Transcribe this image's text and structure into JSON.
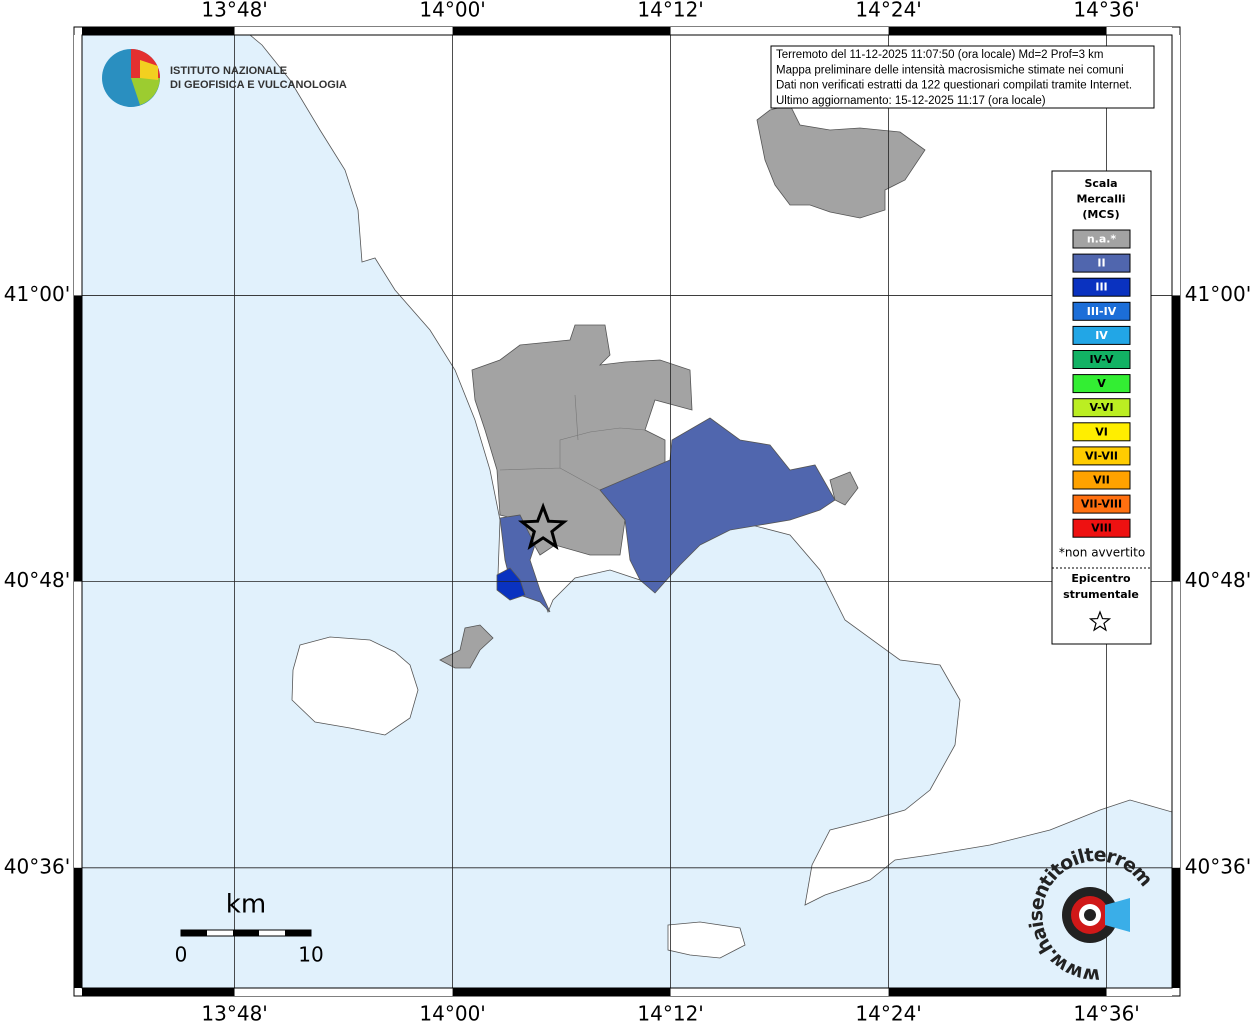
{
  "map": {
    "lon_lim": [
      13.66,
      14.66
    ],
    "lat_lim": [
      40.516,
      41.182
    ],
    "lon_ticks": [
      {
        "value": 13.8,
        "label": "13°48'"
      },
      {
        "value": 14.0,
        "label": "14°00'"
      },
      {
        "value": 14.2,
        "label": "14°12'"
      },
      {
        "value": 14.4,
        "label": "14°24'"
      },
      {
        "value": 14.6,
        "label": "14°36'"
      }
    ],
    "lat_ticks": [
      {
        "value": 41.0,
        "label": "41°00'"
      },
      {
        "value": 40.8,
        "label": "40°48'"
      },
      {
        "value": 40.6,
        "label": "40°36'"
      }
    ],
    "epicenter": {
      "lon": 14.083,
      "lat": 40.837
    },
    "sea_color": "#e1f1fc"
  },
  "info_box": [
    "Terremoto del 11-12-2025 11:07:50 (ora locale) Md=2 Prof=3 km",
    "Mappa preliminare delle intensità macrosismiche stimate nei comuni",
    "Dati non verificati estratti da 122 questionari compilati tramite Internet.",
    "Ultimo aggiornamento: 15-12-2025 11:17 (ora locale)"
  ],
  "legend": {
    "title": [
      "Scala",
      "Mercalli",
      "(MCS)"
    ],
    "items": [
      {
        "label": "n.a.*",
        "color": "#a3a3a3"
      },
      {
        "label": "II",
        "color": "#5066ae"
      },
      {
        "label": "III",
        "color": "#0a32c0"
      },
      {
        "label": "III-IV",
        "color": "#1c6ed8"
      },
      {
        "label": "IV",
        "color": "#22a6e6"
      },
      {
        "label": "IV-V",
        "color": "#12b264"
      },
      {
        "label": "V",
        "color": "#33ee33"
      },
      {
        "label": "V-VI",
        "color": "#bbee22"
      },
      {
        "label": "VI",
        "color": "#ffee00"
      },
      {
        "label": "VI-VII",
        "color": "#ffcc00"
      },
      {
        "label": "VII",
        "color": "#ffa200"
      },
      {
        "label": "VII-VIII",
        "color": "#ff7010"
      },
      {
        "label": "VIII",
        "color": "#ee1111"
      }
    ],
    "note": "*non avvertito",
    "epicenter_label": [
      "Epicentro",
      "strumentale"
    ]
  },
  "scale_bar": {
    "unit": "km",
    "ticks": [
      0,
      10
    ]
  },
  "logo_ingv": [
    "ISTITUTO NAZIONALE",
    "DI GEOFISICA E VULCANOLOGIA"
  ],
  "logo_hsit": "www.haisentitoilterremoto.it"
}
